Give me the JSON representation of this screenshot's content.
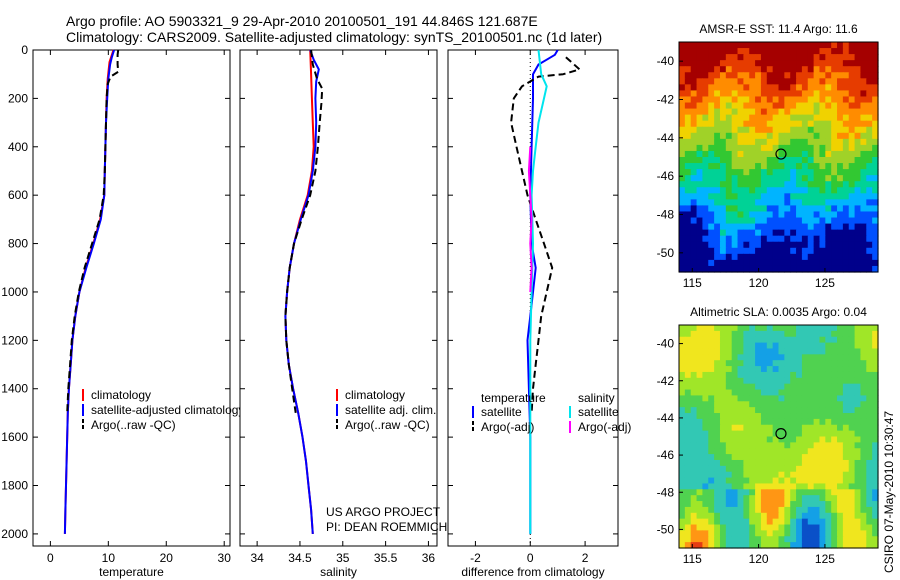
{
  "header": {
    "line1": "Argo profile: AO 5903321_9 29-Apr-2010 20100501_191 44.846S 121.687E",
    "line2": "Climatology: CARS2009. Satellite-adjusted climatology: synTS_20100501.nc (1d later)"
  },
  "side_label": "CSIRO 07-May-2010 10:30:47",
  "credit": [
    "US ARGO PROJECT",
    "PI: DEAN ROEMMICH"
  ],
  "colors": {
    "climatology": "#ff0000",
    "satellite": "#0000ff",
    "argo": "#000000",
    "salinity_satellite": "#00e5ee",
    "salinity_argo": "#ff00ff"
  },
  "chart_data": [
    {
      "type": "line",
      "xlabel": "temperature",
      "ylabel": "",
      "xlim": [
        -3,
        31
      ],
      "ylim": [
        2050,
        0
      ],
      "xticks": [
        0,
        10,
        20,
        30
      ],
      "yticks": [
        0,
        200,
        400,
        600,
        800,
        1000,
        1200,
        1400,
        1600,
        1800,
        2000
      ],
      "legend": {
        "placement": "middle-right",
        "entries": [
          "climatology",
          "satellite-adjusted climatology",
          "Argo(..raw -QC)"
        ]
      },
      "series": [
        {
          "name": "climatology",
          "color": "#ff0000",
          "dash": "solid",
          "points": [
            [
              10.9,
              0
            ],
            [
              10.2,
              50
            ],
            [
              9.9,
              120
            ],
            [
              9.7,
              200
            ],
            [
              9.6,
              300
            ],
            [
              9.5,
              400
            ],
            [
              9.4,
              500
            ],
            [
              9.3,
              600
            ],
            [
              8.6,
              700
            ],
            [
              7.4,
              800
            ],
            [
              6.1,
              900
            ],
            [
              5.0,
              1000
            ],
            [
              4.3,
              1100
            ],
            [
              3.8,
              1200
            ],
            [
              3.5,
              1300
            ],
            [
              3.2,
              1400
            ],
            [
              3.0,
              1500
            ],
            [
              2.9,
              1600
            ],
            [
              2.8,
              1700
            ],
            [
              2.7,
              1800
            ],
            [
              2.6,
              1900
            ],
            [
              2.5,
              2000
            ]
          ]
        },
        {
          "name": "satellite-adjusted climatology",
          "color": "#0000ff",
          "dash": "solid",
          "points": [
            [
              11.0,
              0
            ],
            [
              10.6,
              30
            ],
            [
              10.3,
              60
            ],
            [
              10.0,
              120
            ],
            [
              9.8,
              200
            ],
            [
              9.6,
              300
            ],
            [
              9.5,
              400
            ],
            [
              9.4,
              500
            ],
            [
              9.3,
              600
            ],
            [
              8.7,
              700
            ],
            [
              7.5,
              800
            ],
            [
              6.2,
              900
            ],
            [
              5.0,
              1000
            ],
            [
              4.3,
              1100
            ],
            [
              3.8,
              1200
            ],
            [
              3.5,
              1300
            ],
            [
              3.2,
              1400
            ],
            [
              3.0,
              1500
            ],
            [
              2.9,
              1600
            ],
            [
              2.8,
              1700
            ],
            [
              2.7,
              1800
            ],
            [
              2.6,
              1900
            ],
            [
              2.5,
              2000
            ]
          ]
        },
        {
          "name": "Argo(..raw -QC)",
          "color": "#000000",
          "dash": "dashed",
          "points": [
            [
              11.7,
              0
            ],
            [
              11.6,
              20
            ],
            [
              11.6,
              60
            ],
            [
              11.7,
              90
            ],
            [
              10.4,
              110
            ],
            [
              9.9,
              140
            ],
            [
              9.7,
              200
            ],
            [
              9.6,
              300
            ],
            [
              9.5,
              400
            ],
            [
              9.4,
              500
            ],
            [
              9.2,
              600
            ],
            [
              8.5,
              700
            ],
            [
              7.2,
              800
            ],
            [
              5.9,
              900
            ],
            [
              4.9,
              1000
            ],
            [
              4.2,
              1100
            ],
            [
              3.7,
              1200
            ],
            [
              3.4,
              1300
            ],
            [
              3.1,
              1400
            ],
            [
              2.9,
              1500
            ]
          ]
        }
      ]
    },
    {
      "type": "line",
      "xlabel": "salinity",
      "ylabel": "",
      "xlim": [
        33.8,
        36.1
      ],
      "ylim": [
        2050,
        0
      ],
      "xticks": [
        34,
        34.5,
        35,
        35.5,
        36
      ],
      "yticks": [],
      "legend": {
        "placement": "middle-right",
        "entries": [
          "climatology",
          "satellite adj. clim.",
          "Argo(..raw -QC)"
        ]
      },
      "series": [
        {
          "name": "climatology",
          "color": "#ff0000",
          "dash": "solid",
          "points": [
            [
              34.62,
              0
            ],
            [
              34.63,
              100
            ],
            [
              34.64,
              200
            ],
            [
              34.65,
              300
            ],
            [
              34.66,
              400
            ],
            [
              34.64,
              500
            ],
            [
              34.59,
              600
            ],
            [
              34.5,
              700
            ],
            [
              34.43,
              800
            ],
            [
              34.38,
              900
            ],
            [
              34.35,
              1000
            ],
            [
              34.33,
              1100
            ],
            [
              34.34,
              1200
            ],
            [
              34.37,
              1300
            ],
            [
              34.42,
              1400
            ],
            [
              34.48,
              1500
            ],
            [
              34.53,
              1600
            ],
            [
              34.57,
              1700
            ],
            [
              34.6,
              1800
            ],
            [
              34.63,
              1900
            ],
            [
              34.65,
              2000
            ]
          ]
        },
        {
          "name": "satellite adj. clim.",
          "color": "#0000ff",
          "dash": "solid",
          "points": [
            [
              34.62,
              0
            ],
            [
              34.66,
              40
            ],
            [
              34.72,
              80
            ],
            [
              34.69,
              130
            ],
            [
              34.68,
              200
            ],
            [
              34.69,
              300
            ],
            [
              34.68,
              400
            ],
            [
              34.65,
              500
            ],
            [
              34.6,
              600
            ],
            [
              34.51,
              700
            ],
            [
              34.43,
              800
            ],
            [
              34.38,
              900
            ],
            [
              34.35,
              1000
            ],
            [
              34.33,
              1100
            ],
            [
              34.34,
              1200
            ],
            [
              34.37,
              1300
            ],
            [
              34.42,
              1400
            ],
            [
              34.48,
              1500
            ],
            [
              34.53,
              1600
            ],
            [
              34.57,
              1700
            ],
            [
              34.6,
              1800
            ],
            [
              34.63,
              1900
            ],
            [
              34.65,
              2000
            ]
          ]
        },
        {
          "name": "Argo(..raw -QC)",
          "color": "#000000",
          "dash": "dashed",
          "points": [
            [
              34.63,
              0
            ],
            [
              34.65,
              60
            ],
            [
              34.7,
              120
            ],
            [
              34.76,
              160
            ],
            [
              34.75,
              220
            ],
            [
              34.73,
              300
            ],
            [
              34.71,
              400
            ],
            [
              34.68,
              500
            ],
            [
              34.62,
              600
            ],
            [
              34.52,
              700
            ],
            [
              34.43,
              800
            ],
            [
              34.38,
              900
            ],
            [
              34.35,
              1000
            ],
            [
              34.33,
              1100
            ],
            [
              34.34,
              1200
            ],
            [
              34.37,
              1300
            ],
            [
              34.41,
              1400
            ],
            [
              34.45,
              1500
            ]
          ]
        }
      ]
    },
    {
      "type": "line",
      "xlabel": "difference from climatology",
      "ylabel": "",
      "xlim": [
        -3,
        3.2
      ],
      "ylim": [
        2050,
        0
      ],
      "xticks": [
        -2,
        0,
        2
      ],
      "yticks": [],
      "legend": {
        "placement": "middle-right",
        "groups": [
          {
            "title": "temperature",
            "entries": [
              "satellite",
              "Argo(-adj)"
            ]
          },
          {
            "title": "salinity",
            "entries": [
              "satellite",
              "Argo(-adj)"
            ]
          }
        ]
      },
      "series": [
        {
          "name": "temperature satellite",
          "color": "#0000ff",
          "dash": "solid",
          "points": [
            [
              1.0,
              0
            ],
            [
              0.9,
              20
            ],
            [
              0.6,
              40
            ],
            [
              0.3,
              60
            ],
            [
              0.1,
              100
            ],
            [
              0.1,
              200
            ],
            [
              0.05,
              400
            ],
            [
              0.0,
              600
            ],
            [
              0.05,
              800
            ],
            [
              0.2,
              900
            ],
            [
              0.1,
              1000
            ],
            [
              0.0,
              1100
            ],
            [
              -0.1,
              1200
            ],
            [
              -0.05,
              1400
            ],
            [
              0.0,
              1600
            ],
            [
              0.0,
              1800
            ],
            [
              0.0,
              2000
            ]
          ]
        },
        {
          "name": "temperature Argo(-adj)",
          "color": "#000000",
          "dash": "dashed",
          "points": [
            [
              1.3,
              30
            ],
            [
              1.5,
              50
            ],
            [
              1.8,
              80
            ],
            [
              1.2,
              100
            ],
            [
              0.3,
              110
            ],
            [
              -0.3,
              150
            ],
            [
              -0.6,
              200
            ],
            [
              -0.7,
              300
            ],
            [
              -0.5,
              400
            ],
            [
              -0.3,
              500
            ],
            [
              -0.1,
              600
            ],
            [
              0.2,
              700
            ],
            [
              0.5,
              800
            ],
            [
              0.8,
              900
            ],
            [
              0.6,
              1000
            ],
            [
              0.4,
              1100
            ],
            [
              0.3,
              1200
            ],
            [
              0.2,
              1300
            ],
            [
              0.1,
              1400
            ],
            [
              0.05,
              1500
            ]
          ]
        },
        {
          "name": "salinity satellite",
          "color": "#00e5ee",
          "dash": "solid",
          "points": [
            [
              0.3,
              0
            ],
            [
              0.4,
              100
            ],
            [
              0.6,
              150
            ],
            [
              0.5,
              200
            ],
            [
              0.3,
              300
            ],
            [
              0.2,
              400
            ],
            [
              0.1,
              500
            ],
            [
              0.05,
              600
            ],
            [
              0.1,
              800
            ],
            [
              0.05,
              1000
            ],
            [
              0.0,
              1200
            ],
            [
              0.0,
              1400
            ],
            [
              0.0,
              1600
            ],
            [
              0.0,
              1800
            ],
            [
              0.0,
              2000
            ]
          ]
        },
        {
          "name": "salinity Argo(-adj)",
          "color": "#ff00ff",
          "dash": "solid",
          "points": [
            [
              0.0,
              400
            ],
            [
              -0.05,
              500
            ],
            [
              0.0,
              600
            ],
            [
              0.05,
              700
            ],
            [
              0.0,
              800
            ],
            [
              0.05,
              900
            ],
            [
              0.0,
              1000
            ]
          ]
        }
      ]
    },
    {
      "type": "heatmap",
      "title": "AMSR-E SST: 11.4 Argo: 11.6",
      "xlim": [
        114,
        129
      ],
      "ylim": [
        -51,
        -39
      ],
      "xticks": [
        115,
        120,
        125
      ],
      "yticks": [
        -40,
        -42,
        -44,
        -46,
        -48,
        -50
      ],
      "marker": {
        "lon": 121.687,
        "lat": -44.846
      },
      "colormap": [
        "#00008b",
        "#0050ff",
        "#00b4ff",
        "#00d296",
        "#32c832",
        "#a0d228",
        "#f0d200",
        "#ff8c00",
        "#e63c00",
        "#a50000"
      ]
    },
    {
      "type": "heatmap",
      "title": "Altimetric SLA: 0.0035 Argo: 0.04",
      "xlim": [
        114,
        129
      ],
      "ylim": [
        -51,
        -39
      ],
      "xticks": [
        115,
        120,
        125
      ],
      "yticks": [
        -40,
        -42,
        -44,
        -46,
        -48,
        -50
      ],
      "marker": {
        "lon": 121.687,
        "lat": -44.846
      },
      "colormap": [
        "#0a50c8",
        "#14a0e6",
        "#32c8b4",
        "#50d250",
        "#a0e628",
        "#f0e61e",
        "#ff9614",
        "#e63c14",
        "#a0140a"
      ]
    }
  ]
}
